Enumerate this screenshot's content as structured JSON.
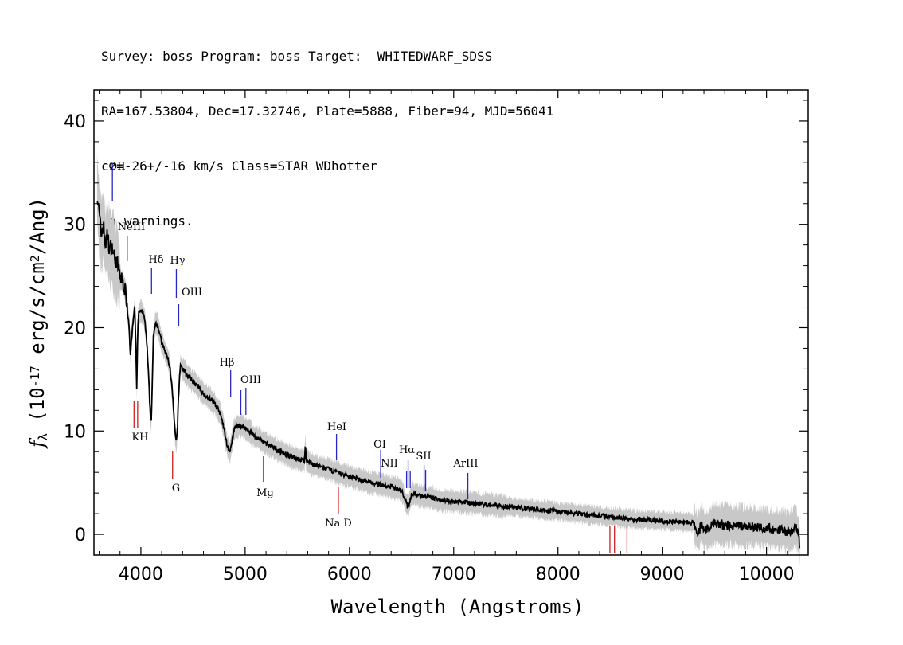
{
  "header": {
    "line1": "Survey: boss Program: boss Target:  WHITEDWARF_SDSS",
    "line2": "RA=167.53804, Dec=17.32746, Plate=5888, Fiber=94, MJD=56041",
    "line3": "cz=-26+/-16 km/s Class=STAR WDhotter",
    "line4": "No warnings."
  },
  "chart_data": {
    "type": "line",
    "title": "",
    "xlabel": "Wavelength (Angstroms)",
    "ylabel": "f_λ (10^-17 erg/s/cm^2/Ang)",
    "xlim": [
      3550,
      10400
    ],
    "ylim": [
      -2,
      43
    ],
    "x_ticks": [
      4000,
      5000,
      6000,
      7000,
      8000,
      9000,
      10000
    ],
    "x_tick_labels": [
      "4000",
      "5000",
      "6000",
      "7000",
      "8000",
      "9000",
      "10000"
    ],
    "y_ticks": [
      0,
      10,
      20,
      30,
      40
    ],
    "y_tick_labels": [
      "0",
      "10",
      "20",
      "30",
      "40"
    ],
    "grid": false,
    "series": [
      {
        "color": "#000000",
        "x": [
          3580,
          3600,
          3620,
          3640,
          3660,
          3680,
          3700,
          3720,
          3740,
          3760,
          3780,
          3800,
          3820,
          3840,
          3860,
          3870,
          3880,
          3890,
          3900,
          3920,
          3940,
          3950,
          3960,
          3970,
          3980,
          3990,
          4000,
          4020,
          4040,
          4060,
          4080,
          4090,
          4100,
          4110,
          4120,
          4140,
          4160,
          4180,
          4200,
          4220,
          4240,
          4260,
          4280,
          4300,
          4320,
          4330,
          4340,
          4350,
          4360,
          4370,
          4380,
          4400,
          4420,
          4440,
          4460,
          4480,
          4500,
          4550,
          4600,
          4650,
          4700,
          4750,
          4780,
          4810,
          4830,
          4850,
          4861,
          4875,
          4890,
          4910,
          4930,
          4950,
          4980,
          5000,
          5050,
          5100,
          5200,
          5300,
          5400,
          5500,
          5570,
          5577,
          5585,
          5600,
          5700,
          5800,
          5876,
          5900,
          6000,
          6100,
          6200,
          6300,
          6400,
          6500,
          6530,
          6550,
          6563,
          6580,
          6600,
          6650,
          6700,
          6800,
          6900,
          7000,
          7200,
          7400,
          7600,
          7800,
          8000,
          8200,
          8400,
          8600,
          8800,
          9000,
          9200,
          9300,
          9340,
          9360,
          9380,
          9400,
          9500,
          9600,
          9700,
          9800,
          9900,
          10000,
          10100,
          10200,
          10250,
          10280,
          10300,
          10320
        ],
        "y": [
          33,
          31,
          29,
          30,
          28,
          29,
          27.5,
          28,
          27,
          26.5,
          26,
          25,
          24.5,
          24,
          23,
          22,
          21,
          20,
          17.5,
          20,
          22,
          19,
          14,
          20,
          21.5,
          21.5,
          21.5,
          21.5,
          20.5,
          18,
          14,
          11.5,
          11,
          15,
          19,
          20.5,
          20.2,
          19.5,
          18.5,
          18,
          17.5,
          17,
          16,
          14,
          11,
          9.5,
          9,
          10,
          13,
          15,
          16.5,
          16,
          15.8,
          15.5,
          15.2,
          15,
          14.8,
          14.3,
          13.6,
          13.2,
          12.8,
          12,
          11,
          9.5,
          8.5,
          8,
          8.2,
          9,
          10,
          10.4,
          10.5,
          10.5,
          10.4,
          10.3,
          9.9,
          9.4,
          8.8,
          8.2,
          7.7,
          7.3,
          7.1,
          8.8,
          7.1,
          7,
          6.6,
          6.3,
          6,
          5.9,
          5.6,
          5.3,
          5,
          4.8,
          4.6,
          4.3,
          3.5,
          2.9,
          2.6,
          3.3,
          3.9,
          3.8,
          3.7,
          3.5,
          3.3,
          3.2,
          3,
          2.8,
          2.6,
          2.4,
          2.2,
          2,
          1.8,
          1.6,
          1.4,
          1.3,
          1.2,
          1.1,
          0,
          0.5,
          1.1,
          0.3,
          1,
          0.9,
          0.8,
          0.8,
          0.7,
          0.6,
          0.5,
          0.3,
          0.4,
          0.8,
          0.2,
          -1.2
        ]
      }
    ],
    "emission_lines": [
      {
        "label": "OII",
        "x": 3727,
        "color": "#2828c8"
      },
      {
        "label": "NeIII",
        "x": 3869,
        "color": "#2828c8"
      },
      {
        "label": "Hδ",
        "x": 4102,
        "color": "#2828c8"
      },
      {
        "label": "Hγ",
        "x": 4340,
        "color": "#2828c8"
      },
      {
        "label": "OIII",
        "x": 4363,
        "color": "#2828c8"
      },
      {
        "label": "Hβ",
        "x": 4861,
        "color": "#2828c8"
      },
      {
        "label": "OIII",
        "x": 4959,
        "color": "#2828c8"
      },
      {
        "label": "OIII",
        "x": 5007,
        "color": "#2828c8"
      },
      {
        "label": "HeI",
        "x": 5876,
        "color": "#2828c8"
      },
      {
        "label": "OI",
        "x": 6300,
        "color": "#2828c8"
      },
      {
        "label": "NII",
        "x": 6548,
        "color": "#2828c8"
      },
      {
        "label": "Hα",
        "x": 6563,
        "color": "#2828c8"
      },
      {
        "label": "NII",
        "x": 6583,
        "color": "#2828c8"
      },
      {
        "label": "SII",
        "x": 6716,
        "color": "#2828c8"
      },
      {
        "label": "SII",
        "x": 6731,
        "color": "#2828c8"
      },
      {
        "label": "ArIII",
        "x": 7136,
        "color": "#2828c8"
      }
    ],
    "absorption_lines": [
      {
        "label": "K",
        "x": 3934,
        "color": "#d02020"
      },
      {
        "label": "H",
        "x": 3969,
        "color": "#d02020"
      },
      {
        "label": "G",
        "x": 4304,
        "color": "#d02020"
      },
      {
        "label": "Mg",
        "x": 5175,
        "color": "#d02020"
      },
      {
        "label": "Na D",
        "x": 5894,
        "color": "#d02020"
      },
      {
        "label": "",
        "x": 8498,
        "color": "#d02020"
      },
      {
        "label": "",
        "x": 8542,
        "color": "#d02020"
      },
      {
        "label": "",
        "x": 8662,
        "color": "#d02020"
      }
    ]
  }
}
